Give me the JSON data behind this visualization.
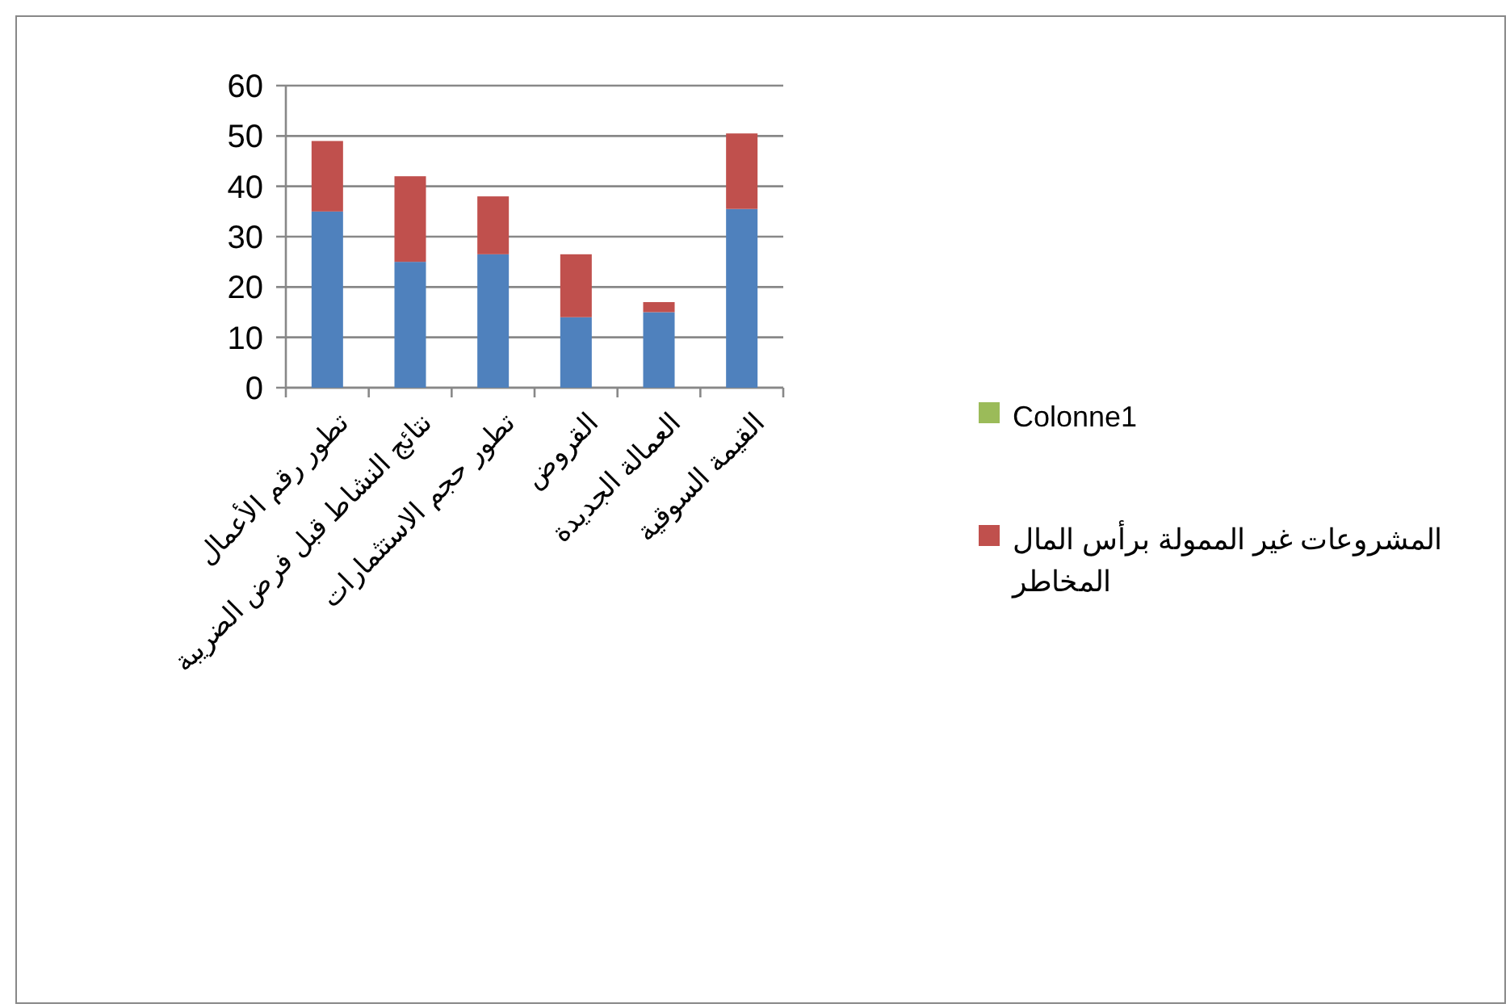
{
  "chart_data": {
    "type": "bar",
    "stacked": true,
    "categories": [
      "تطور رقم الأعمال",
      "نتائج النشاط قبل فرض الضريبة",
      "تطور حجم الاستثمارات",
      "القروض",
      "العمالة الجديدة",
      "القيمة السوقية"
    ],
    "series": [
      {
        "color": "#4f81bd",
        "values": [
          35,
          25,
          26.5,
          14,
          15,
          35.5
        ]
      },
      {
        "name": "المشروعات غير الممولة برأس المال المخاطر",
        "color": "#c0504d",
        "values": [
          14,
          17,
          11.5,
          12.5,
          2,
          15
        ]
      },
      {
        "name": "Colonne1",
        "color": "#9bbb59",
        "values": [
          null,
          null,
          null,
          null,
          null,
          null
        ]
      }
    ],
    "ylim": [
      0,
      60
    ],
    "yticks": [
      0,
      10,
      20,
      30,
      40,
      50,
      60
    ],
    "grid": "y",
    "legend": "right"
  }
}
